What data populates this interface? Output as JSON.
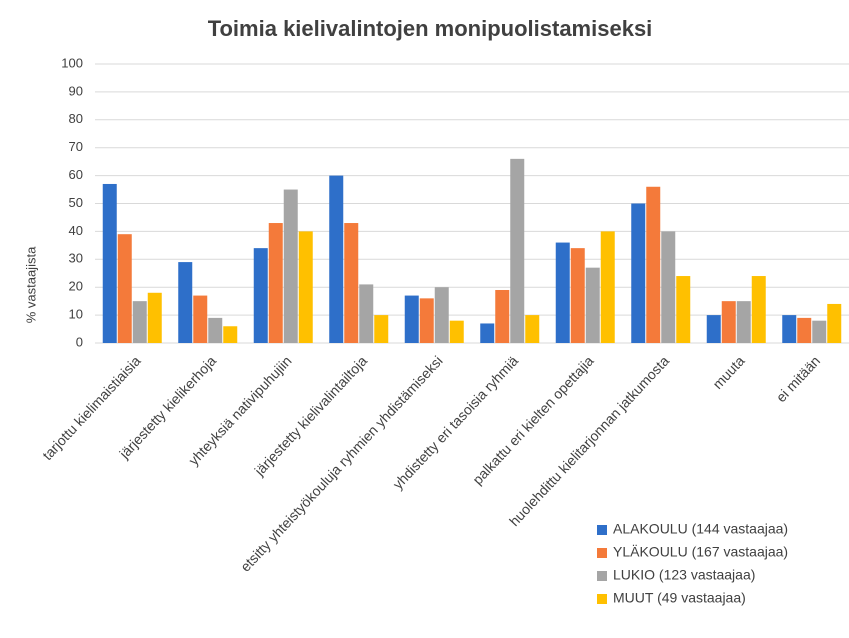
{
  "chart_data": {
    "type": "bar",
    "title": "Toimia kielivalintojen monipuolistamiseksi",
    "y_label": "% vastaajista",
    "categories": [
      "tarjottu kielimaistiaisia",
      "järjestetty kielikerhoja",
      "yhteyksiä nativipuhujiin",
      "järjestetty kielivalintailtoja",
      "etsitty yhteistyökouluja ryhmien yhdistämiseksi",
      "yhdistetty eri tasoisia ryhmiä",
      "palkattu eri kielten opettajia",
      "huolehdittu kielitarjonnan jatkumosta",
      "muuta",
      "ei mitään"
    ],
    "series": [
      {
        "name": "ALAKOULU (144 vastaajaa)",
        "color": "#2e6fc9",
        "values": [
          57,
          29,
          34,
          60,
          17,
          7,
          36,
          50,
          10,
          10
        ]
      },
      {
        "name": "YLÄKOULU (167 vastaajaa)",
        "color": "#f47a3a",
        "values": [
          39,
          17,
          43,
          43,
          16,
          19,
          34,
          56,
          15,
          9
        ]
      },
      {
        "name": "LUKIO (123 vastaajaa)",
        "color": "#a5a5a5",
        "values": [
          15,
          9,
          55,
          21,
          20,
          66,
          27,
          40,
          15,
          8
        ]
      },
      {
        "name": "MUUT (49 vastaajaa)",
        "color": "#ffc000",
        "values": [
          18,
          6,
          40,
          10,
          8,
          10,
          40,
          24,
          24,
          14
        ]
      }
    ],
    "ylim": [
      0,
      100
    ],
    "yticks": [
      0,
      10,
      20,
      30,
      40,
      50,
      60,
      70,
      80,
      90,
      100
    ],
    "grid": true,
    "legend": "lower right"
  }
}
